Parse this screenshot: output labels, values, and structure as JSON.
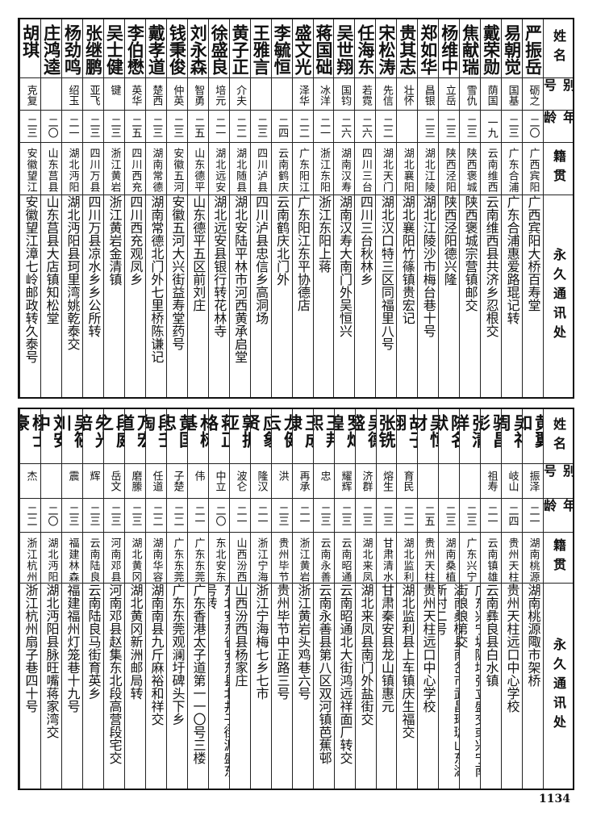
{
  "headers": {
    "name": "姓名",
    "alias": "别号",
    "age": "年龄",
    "origin": "籍贯",
    "address": "永久通讯处"
  },
  "top_table": [
    {
      "name": "严振岳",
      "alias": "砺之",
      "age": "二〇",
      "origin": "广西宾阳",
      "address": "广西宾阳大桥百寿堂"
    },
    {
      "name": "易朝觉",
      "alias": "国基",
      "age": "二三",
      "origin": "广东合浦",
      "address": "广东合浦惠爱路琨记转"
    },
    {
      "name": "戴荣勋",
      "alias": "荫国",
      "age": "一九",
      "origin": "云南维西",
      "address": "云南维西县共济乡忍根交"
    },
    {
      "name": "焦献瑞",
      "alias": "雪仇",
      "age": "二三",
      "origin": "陕西褒城",
      "address": "陕西褒城宗营镇邮交"
    },
    {
      "name": "杨维中",
      "alias": "立岳",
      "age": "二三",
      "origin": "陕西泾阳",
      "address": "陕西泾阳德兴隆"
    },
    {
      "name": "郑如华",
      "alias": "昌银",
      "age": "二三",
      "origin": "湖北江陵",
      "address": "湖北江陵沙市梅台巷十号"
    },
    {
      "name": "贵其志",
      "alias": "壮怀",
      "age": "",
      "origin": "湖北襄阳",
      "address": "湖北襄阳竹篠镇贵宏记"
    },
    {
      "name": "宋松涛",
      "alias": "先信",
      "age": "二二",
      "origin": "湖北天门",
      "address": "湖北汉口特三区同福里八号"
    },
    {
      "name": "任海东",
      "alias": "若霓",
      "age": "二六",
      "origin": "四川三台",
      "address": "四川三台秋林乡"
    },
    {
      "name": "吴世翔",
      "alias": "国钧",
      "age": "二六",
      "origin": "湖南汉寿",
      "address": "湖南汉寿大南门外吴恒兴"
    },
    {
      "name": "蒋国础",
      "alias": "冰洋",
      "age": "二一",
      "origin": "浙江东阳",
      "address": "浙江东阳上蒋"
    },
    {
      "name": "盛文光",
      "alias": "泽华",
      "age": "二二",
      "origin": "广东阳江",
      "address": "广东阳江东平协德店"
    },
    {
      "name": "李毓恒",
      "alias": "",
      "age": "二四",
      "origin": "云南鹤庆",
      "address": "云南鹤庆北门外"
    },
    {
      "name": "王雅言",
      "alias": "",
      "age": "二三",
      "origin": "四川泸县",
      "address": "四川泸县忠信乡高洞场"
    },
    {
      "name": "黄子正",
      "alias": "介夫",
      "age": "二二",
      "origin": "湖北随县",
      "address": "湖北安陆平林市河西黄承启堂"
    },
    {
      "name": "徐盛良",
      "alias": "培元",
      "age": "二一",
      "origin": "湖北远安",
      "address": "湖北远安县银行转花林寺"
    },
    {
      "name": "刘永森",
      "alias": "智勇",
      "age": "二五",
      "origin": "山东德平",
      "address": "山东德平五区前刘庄"
    },
    {
      "name": "钱秉俊",
      "alias": "仲英",
      "age": "二三",
      "origin": "安徽五河",
      "address": "安徽五河大兴街益寿堂药号"
    },
    {
      "name": "戴孝道",
      "alias": "楚西",
      "age": "二三",
      "origin": "湖南常德",
      "address": "湖南常德北门外七里桥陈谦记"
    },
    {
      "name": "李伯懋",
      "alias": "英华",
      "age": "二五",
      "origin": "四川西充",
      "address": "四川西充观凤乡"
    },
    {
      "name": "吴士健",
      "alias": "键",
      "age": "二三",
      "origin": "浙江黄岩",
      "address": "浙江黄岩金清镇"
    },
    {
      "name": "张继鹏",
      "alias": "亚飞",
      "age": "二三",
      "origin": "四川万县",
      "address": "四川万县凉水乡乡公所转"
    },
    {
      "name": "杨劲鸣",
      "alias": "绍玉",
      "age": "二一",
      "origin": "湖北沔阳",
      "address": "湖北沔阳县珂里湾姚乾泰交"
    },
    {
      "name": "庄鸿逵",
      "alias": "",
      "age": "二〇",
      "origin": "山东莒县",
      "address": "山东莒县大店镇知松堂"
    },
    {
      "name": "胡琪",
      "alias": "克复",
      "age": "二三",
      "origin": "安徽望江",
      "address": "安徽望江漳七岭邮政转久泰号"
    }
  ],
  "bottom_table": [
    {
      "name": "黄翼如",
      "alias": "振泽",
      "age": "二一",
      "origin": "湖南桃源",
      "address": "湖南桃源陬市架桥"
    },
    {
      "name": "吴礼周",
      "alias": "岐山",
      "age": "二四",
      "origin": "贵州天柱",
      "address": "贵州天柱远口中心学校"
    },
    {
      "name": "骆昌彭",
      "alias": "祖寿",
      "age": "二一",
      "origin": "云南镇雄",
      "address": "云南彝良县白水镇"
    },
    {
      "name": "张清祥",
      "alias": "",
      "age": "二三",
      "origin": "广东兴宁",
      "address": "广东兴宁坜陂圩张立盛交或兴宁南街娘娘第交"
    },
    {
      "name": "陈名默",
      "alias": "",
      "age": "二三",
      "origin": "湖南桑植",
      "address": "湖南桑植县南岔市武昌珞珈山东湖新村二号"
    },
    {
      "name": "吴恒材",
      "alias": "",
      "age": "二五",
      "origin": "贵州天柱",
      "address": "贵州天柱远口中心学校"
    },
    {
      "name": "胡子翔",
      "alias": "育民",
      "age": "二二",
      "origin": "湖北监利",
      "address": "湖北监利县上车镇庆生福交"
    },
    {
      "name": "张铣",
      "alias": "熔生",
      "age": "二三",
      "origin": "甘肃清水",
      "address": "甘肃秦安县龙山镇惠元"
    },
    {
      "name": "吴德盛",
      "alias": "济群",
      "age": "二三",
      "origin": "湖北来凤",
      "address": "湖北来凤县南门外盐街交"
    },
    {
      "name": "罗灿煌",
      "alias": "耀辉",
      "age": "二三",
      "origin": "云南昭通",
      "address": "云南昭通北大街鸿远祥面厂转交"
    },
    {
      "name": "王邦熙",
      "alias": "忠",
      "age": "二三",
      "origin": "云南永善",
      "address": "云南永善县第八区双河镇芭蕉邨"
    },
    {
      "name": "王成棣",
      "alias": "再承",
      "age": "二一",
      "origin": "浙江黄岩",
      "address": "浙江黄岩头鸡巷六号"
    },
    {
      "name": "龙健云",
      "alias": "洪",
      "age": "二三",
      "origin": "贵州毕节",
      "address": "贵州毕节中正路三号"
    },
    {
      "name": "应象贤",
      "alias": "隆汉",
      "age": "二一",
      "origin": "浙江宁海",
      "address": "浙江宁海梅七乡七市"
    },
    {
      "name": "郭振亚",
      "alias": "波仑",
      "age": "二一",
      "origin": "山西汾西",
      "address": "山西汾西县杨家庄"
    },
    {
      "name": "蒋正路",
      "alias": "中立",
      "age": "二〇",
      "origin": "东北安东",
      "address": "东北安东省安东县北井子街源盛东号转"
    },
    {
      "name": "林树基",
      "alias": "伟",
      "age": "二一",
      "origin": "广东东莞",
      "address": "广东香港太子道第一一〇号三楼"
    },
    {
      "name": "黄国忠",
      "alias": "子楚",
      "age": "二二",
      "origin": "广东东莞",
      "address": "广东东莞观澜圩碑头下乡"
    },
    {
      "name": "段壬淘",
      "alias": "任道",
      "age": "二二",
      "origin": "湖南华容",
      "address": "湖南南县九斤麻裕和祥交"
    },
    {
      "name": "万宏道",
      "alias": "磨縢",
      "age": "二三",
      "origin": "湖北黄冈",
      "address": "湖北黄冈新洲邮局转"
    },
    {
      "name": "段庭之",
      "alias": "岳文",
      "age": "二三",
      "origin": "河南邓县",
      "address": "河南邓县赵集东北段高营段宅交"
    },
    {
      "name": "朱光培",
      "alias": "辉",
      "age": "二三",
      "origin": "云南陆良",
      "address": "云南陆良马街育英乡"
    },
    {
      "name": "吴筱川",
      "alias": "震",
      "age": "二三",
      "origin": "福建林森",
      "address": "福建福州灯笼巷十九号"
    },
    {
      "name": "刘安中",
      "alias": "",
      "age": "二〇",
      "origin": "湖北沔阳",
      "address": "湖北沔阳县脉旺嘴蒋家湾交"
    },
    {
      "name": "杨士豪",
      "alias": "杰",
      "age": "二二",
      "origin": "浙江杭州",
      "address": "浙江杭州扇子巷四十号"
    }
  ],
  "page_number": "1134"
}
